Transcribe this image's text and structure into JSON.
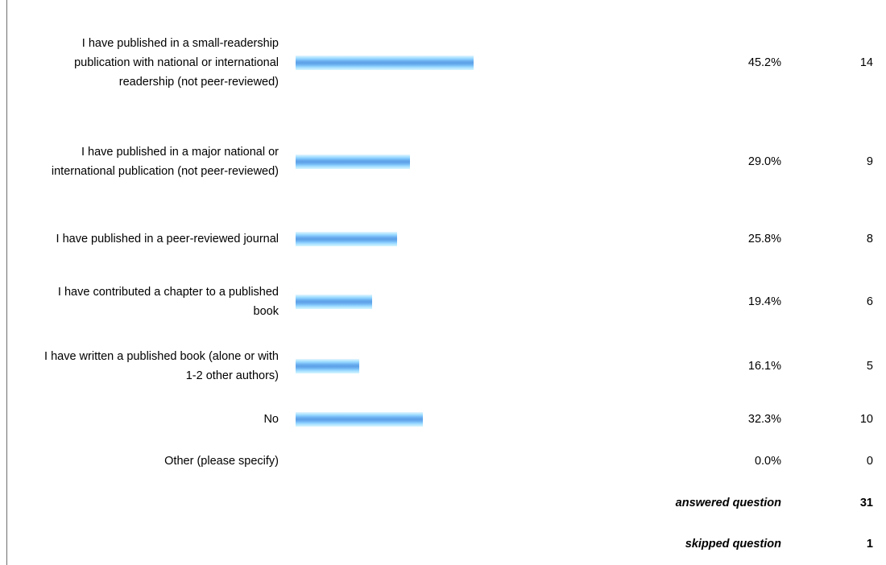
{
  "chart_data": {
    "type": "bar",
    "orientation": "horizontal",
    "title": "",
    "xlabel": "",
    "ylabel": "",
    "categories": [
      "I have published in a small-readership publication with national or international readership (not peer-reviewed)",
      "I have published in a major national or international publication (not peer-reviewed)",
      "I have published in a peer-reviewed journal",
      "I have contributed a chapter to a published book",
      "I have written a published book (alone or with 1-2 other authors)",
      "No",
      "Other (please specify)"
    ],
    "values": [
      45.2,
      29.0,
      25.8,
      19.4,
      16.1,
      32.3,
      0.0
    ],
    "xlim": [
      0,
      100
    ],
    "grid": false,
    "legend": "none",
    "rows": [
      {
        "label": "I have published in a small-readership publication with national or international readership (not peer-reviewed)",
        "percent": "45.2%",
        "count": "14",
        "value": 45.2
      },
      {
        "label": "I have published in a major national or international publication (not peer-reviewed)",
        "percent": "29.0%",
        "count": "9",
        "value": 29.0
      },
      {
        "label": "I have published in a peer-reviewed journal",
        "percent": "25.8%",
        "count": "8",
        "value": 25.8
      },
      {
        "label": "I have contributed a chapter to a published book",
        "percent": "19.4%",
        "count": "6",
        "value": 19.4
      },
      {
        "label": "I have written a published book (alone or with 1-2 other authors)",
        "percent": "16.1%",
        "count": "5",
        "value": 16.1
      },
      {
        "label": "No",
        "percent": "32.3%",
        "count": "10",
        "value": 32.3
      },
      {
        "label": "Other (please specify)",
        "percent": "0.0%",
        "count": "0",
        "value": 0.0
      }
    ],
    "summary": [
      {
        "label": "answered question",
        "value": "31"
      },
      {
        "label": "skipped question",
        "value": "1"
      }
    ]
  },
  "colors": {
    "bar_light": "#b6e8ff",
    "bar_dark": "#5c9fe6",
    "rule": "#6e6e6e"
  }
}
